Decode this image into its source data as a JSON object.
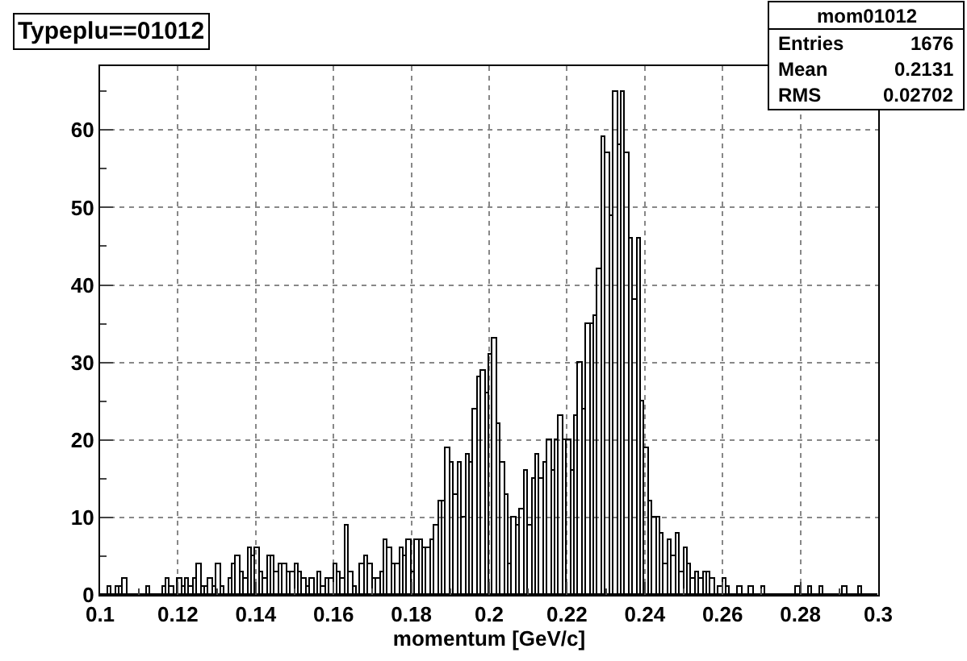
{
  "chart_data": {
    "type": "histogram",
    "title": "Typeplu==01012",
    "xlabel": "momentum [GeV/c]",
    "bins": [
      0.1,
      0.101,
      0.102,
      0.103,
      0.104,
      0.105,
      0.106,
      0.107,
      0.108,
      0.109,
      0.11,
      0.111,
      0.112,
      0.113,
      0.114,
      0.115,
      0.116,
      0.117,
      0.118,
      0.119,
      0.12,
      0.121,
      0.122,
      0.123,
      0.124,
      0.125,
      0.126,
      0.127,
      0.128,
      0.129,
      0.13,
      0.131,
      0.132,
      0.133,
      0.134,
      0.135,
      0.136,
      0.137,
      0.138,
      0.139,
      0.14,
      0.141,
      0.142,
      0.143,
      0.144,
      0.145,
      0.146,
      0.147,
      0.148,
      0.149,
      0.15,
      0.151,
      0.152,
      0.153,
      0.154,
      0.155,
      0.156,
      0.157,
      0.158,
      0.159,
      0.16,
      0.161,
      0.162,
      0.163,
      0.164,
      0.165,
      0.166,
      0.167,
      0.168,
      0.169,
      0.17,
      0.171,
      0.172,
      0.173,
      0.174,
      0.175,
      0.176,
      0.177,
      0.178,
      0.179,
      0.18,
      0.181,
      0.182,
      0.183,
      0.184,
      0.185,
      0.186,
      0.187,
      0.188,
      0.189,
      0.19,
      0.191,
      0.192,
      0.193,
      0.194,
      0.195,
      0.196,
      0.197,
      0.198,
      0.199,
      0.2,
      0.201,
      0.202,
      0.203,
      0.204,
      0.205,
      0.206,
      0.207,
      0.208,
      0.209,
      0.21,
      0.211,
      0.212,
      0.213,
      0.214,
      0.215,
      0.216,
      0.217,
      0.218,
      0.219,
      0.22,
      0.221,
      0.222,
      0.223,
      0.224,
      0.225,
      0.226,
      0.227,
      0.228,
      0.229,
      0.23,
      0.231,
      0.232,
      0.233,
      0.234,
      0.235,
      0.236,
      0.237,
      0.238,
      0.239,
      0.24,
      0.241,
      0.242,
      0.243,
      0.244,
      0.245,
      0.246,
      0.247,
      0.248,
      0.249,
      0.25,
      0.251,
      0.252,
      0.253,
      0.254,
      0.255,
      0.256,
      0.257,
      0.258,
      0.259,
      0.26,
      0.261,
      0.262,
      0.263,
      0.264,
      0.265,
      0.266,
      0.267,
      0.268,
      0.269,
      0.27,
      0.271,
      0.272,
      0.273,
      0.274,
      0.275,
      0.276,
      0.277,
      0.278,
      0.279,
      0.28,
      0.281,
      0.282,
      0.283,
      0.284,
      0.285,
      0.286,
      0.287,
      0.288,
      0.289,
      0.29,
      0.291,
      0.292,
      0.293,
      0.294,
      0.295,
      0.296,
      0.297,
      0.298,
      0.299,
      0.3
    ],
    "values": [
      0,
      0,
      1,
      0,
      1,
      1,
      2,
      0,
      0,
      0,
      0,
      0,
      1,
      0,
      0,
      0,
      1,
      2,
      1,
      0,
      2,
      1,
      2,
      1,
      2,
      4,
      1,
      1,
      2,
      1,
      4,
      1,
      0,
      2,
      4,
      5,
      3,
      2,
      6,
      5,
      6,
      3,
      2,
      5,
      5,
      3,
      4,
      4,
      3,
      3,
      4,
      3,
      2,
      1,
      2,
      0,
      3,
      1,
      2,
      2,
      4,
      3,
      2,
      9,
      3,
      1,
      0,
      4,
      5,
      4,
      2,
      2,
      3,
      7,
      6,
      4,
      4,
      6,
      5,
      7,
      3,
      7,
      7,
      6,
      6,
      7,
      9,
      12,
      12,
      19,
      17,
      13,
      17,
      10,
      18,
      17,
      24,
      28,
      29,
      26,
      31,
      33,
      22,
      17,
      13,
      4,
      10,
      9,
      11,
      16,
      9,
      15,
      18,
      15,
      17,
      20,
      16,
      20,
      23,
      20,
      20,
      16,
      23,
      30,
      24,
      35,
      35,
      36,
      42,
      59,
      57,
      49,
      65,
      58,
      65,
      57,
      46,
      38,
      46,
      25,
      19,
      12,
      10,
      10,
      8,
      4,
      7,
      5,
      8,
      3,
      6,
      4,
      2,
      3,
      2,
      3,
      3,
      2,
      0,
      1,
      2,
      1,
      0,
      0,
      1,
      0,
      0,
      1,
      0,
      0,
      1,
      0,
      0,
      0,
      0,
      0,
      0,
      0,
      0,
      1,
      0,
      0,
      1,
      0,
      0,
      1,
      0,
      0,
      0,
      0,
      0,
      1,
      0,
      0,
      0,
      1,
      0,
      0,
      0,
      0
    ],
    "color": "#000000",
    "xlim": [
      0.1,
      0.3
    ],
    "ylim": [
      0,
      68.25
    ],
    "xticks": [
      0.1,
      0.12,
      0.14,
      0.16,
      0.18,
      0.2,
      0.22,
      0.24,
      0.26,
      0.28,
      0.3
    ],
    "yticks": [
      0,
      10,
      20,
      30,
      40,
      50,
      60
    ],
    "grid": true,
    "annotations": [
      "mom01012",
      "Entries 1676",
      "Mean 0.2131",
      "RMS 0.02702"
    ]
  }
}
